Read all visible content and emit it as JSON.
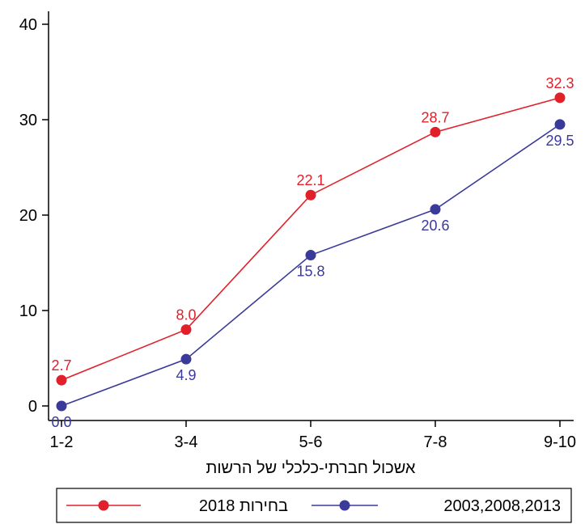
{
  "chart_data": {
    "type": "line",
    "categories": [
      "1-2",
      "3-4",
      "5-6",
      "7-8",
      "9-10"
    ],
    "xlabel": "אשכול חברתי-כלכלי של הרשות",
    "ylabel": "",
    "ylim": [
      0,
      40
    ],
    "yticks": [
      0,
      10,
      20,
      30,
      40
    ],
    "grid": false,
    "legend_position": "bottom",
    "series": [
      {
        "name": "בחירות 2018",
        "color": "#e0202a",
        "values": [
          2.7,
          8.0,
          22.1,
          28.7,
          32.3
        ],
        "labels": [
          "2.7",
          "8.0",
          "22.1",
          "28.7",
          "32.3"
        ],
        "label_position": "above"
      },
      {
        "name": "2003,2008,2013",
        "color": "#3a3a9a",
        "values": [
          0.0,
          4.9,
          15.8,
          20.6,
          29.5
        ],
        "labels": [
          "0.0",
          "4.9",
          "15.8",
          "20.6",
          "29.5"
        ],
        "label_position": "below"
      }
    ]
  }
}
